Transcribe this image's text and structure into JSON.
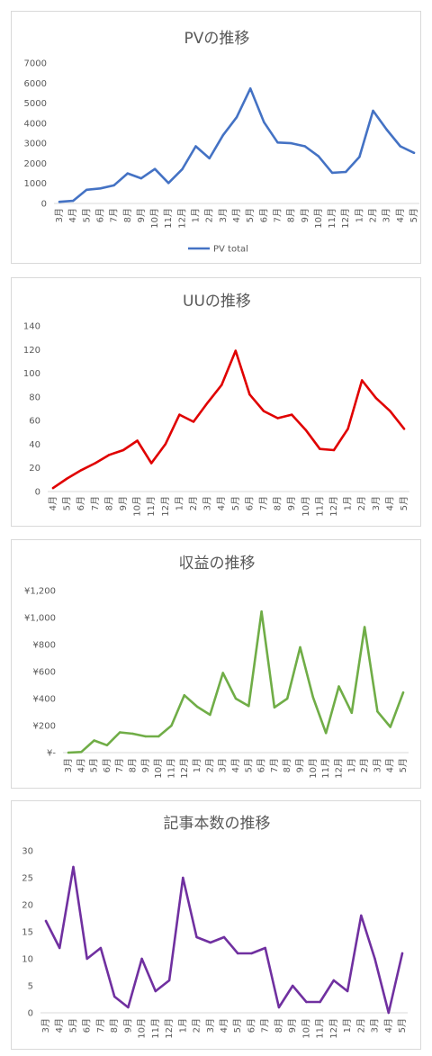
{
  "charts": [
    {
      "type": "line",
      "title": "PVの推移",
      "color": "#4472c4",
      "ylim": [
        0,
        7000
      ],
      "ytick_labels": [
        "0",
        "1000",
        "2000",
        "3000",
        "4000",
        "5000",
        "6000",
        "7000"
      ],
      "categories": [
        "3月",
        "4月",
        "5月",
        "6月",
        "7月",
        "8月",
        "9月",
        "10月",
        "11月",
        "12月",
        "1月",
        "2月",
        "3月",
        "4月",
        "5月",
        "6月",
        "7月",
        "8月",
        "9月",
        "10月",
        "11月",
        "12月",
        "1月",
        "2月",
        "3月",
        "4月",
        "5月"
      ],
      "series": [
        {
          "name": "PV total",
          "values": [
            80,
            130,
            680,
            750,
            900,
            1500,
            1250,
            1720,
            1020,
            1700,
            2850,
            2250,
            3400,
            4300,
            5730,
            4050,
            3040,
            3000,
            2850,
            2350,
            1530,
            1570,
            2320,
            4620,
            3680,
            2850,
            2520
          ]
        }
      ],
      "legend": "bottom",
      "grid": false
    },
    {
      "type": "line",
      "title": "UUの推移",
      "color": "#e00000",
      "ylim": [
        0,
        140
      ],
      "ytick_labels": [
        "0",
        "20",
        "40",
        "60",
        "80",
        "100",
        "120",
        "140"
      ],
      "categories": [
        "4月",
        "5月",
        "6月",
        "7月",
        "8月",
        "9月",
        "10月",
        "11月",
        "12月",
        "1月",
        "2月",
        "3月",
        "4月",
        "5月",
        "6月",
        "7月",
        "8月",
        "9月",
        "10月",
        "11月",
        "12月",
        "1月",
        "2月",
        "3月",
        "4月",
        "5月"
      ],
      "series": [
        {
          "values": [
            3,
            11,
            18,
            24,
            31,
            35,
            43,
            24,
            40,
            65,
            59,
            75,
            90,
            119,
            82,
            68,
            62,
            65,
            52,
            36,
            35,
            53,
            94,
            79,
            68,
            53
          ]
        }
      ],
      "legend": "none",
      "grid": false
    },
    {
      "type": "line",
      "title": "収益の推移",
      "color": "#70ad47",
      "ylim": [
        0,
        1200
      ],
      "ytick_labels": [
        "¥-",
        "¥200",
        "¥400",
        "¥600",
        "¥800",
        "¥1,000",
        "¥1,200"
      ],
      "categories": [
        "3月",
        "4月",
        "5月",
        "6月",
        "7月",
        "8月",
        "9月",
        "10月",
        "11月",
        "12月",
        "1月",
        "2月",
        "3月",
        "4月",
        "5月",
        "6月",
        "7月",
        "8月",
        "9月",
        "10月",
        "11月",
        "12月",
        "1月",
        "2月",
        "3月",
        "4月",
        "5月"
      ],
      "series": [
        {
          "values": [
            0,
            5,
            90,
            55,
            150,
            140,
            120,
            120,
            200,
            425,
            340,
            280,
            590,
            400,
            345,
            1045,
            335,
            400,
            780,
            410,
            145,
            490,
            295,
            930,
            305,
            190,
            445
          ]
        }
      ],
      "legend": "none",
      "grid": false
    },
    {
      "type": "line",
      "title": "記事本数の推移",
      "color": "#7030a0",
      "ylim": [
        0,
        30
      ],
      "ytick_labels": [
        "0",
        "5",
        "10",
        "15",
        "20",
        "25",
        "30"
      ],
      "categories": [
        "3月",
        "4月",
        "5月",
        "6月",
        "7月",
        "8月",
        "9月",
        "10月",
        "11月",
        "12月",
        "1月",
        "2月",
        "3月",
        "4月",
        "5月",
        "6月",
        "7月",
        "8月",
        "9月",
        "10月",
        "11月",
        "12月",
        "1月",
        "2月",
        "3月",
        "4月",
        "5月"
      ],
      "series": [
        {
          "values": [
            17,
            12,
            27,
            10,
            12,
            3,
            1,
            10,
            4,
            6,
            25,
            14,
            13,
            14,
            11,
            11,
            12,
            1,
            5,
            2,
            2,
            6,
            4,
            18,
            10,
            0,
            11
          ]
        }
      ],
      "legend": "none",
      "grid": false
    }
  ]
}
